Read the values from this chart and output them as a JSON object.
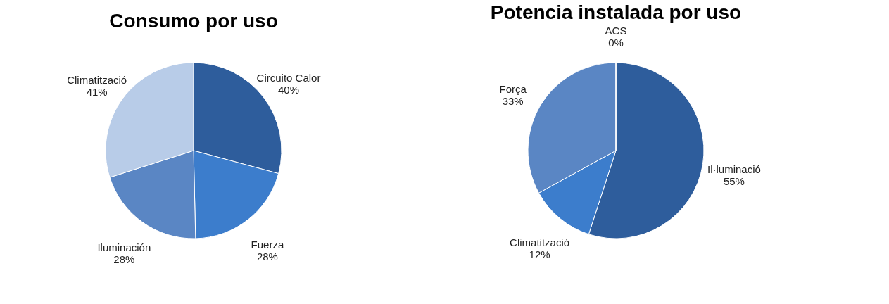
{
  "chart_data": [
    {
      "type": "pie",
      "title": "Consumo por uso",
      "categories": [
        "Circuito Calor",
        "Fuerza",
        "Iluminación",
        "Climatització"
      ],
      "values": [
        40,
        28,
        28,
        41
      ],
      "value_labels": [
        "40%",
        "28%",
        "28%",
        "41%"
      ],
      "colors": [
        "#2e5d9c",
        "#3c7dcc",
        "#5a86c4",
        "#b8cce8"
      ],
      "legend": false
    },
    {
      "type": "pie",
      "title": "Potencia instalada por uso",
      "categories": [
        "Il·luminació",
        "Climatització",
        "Força",
        "ACS"
      ],
      "values": [
        55,
        12,
        33,
        0
      ],
      "value_labels": [
        "55%",
        "12%",
        "33%",
        "0%"
      ],
      "colors": [
        "#2e5d9c",
        "#3c7dcc",
        "#5a86c4",
        "#b8cce8"
      ],
      "legend": false
    }
  ]
}
